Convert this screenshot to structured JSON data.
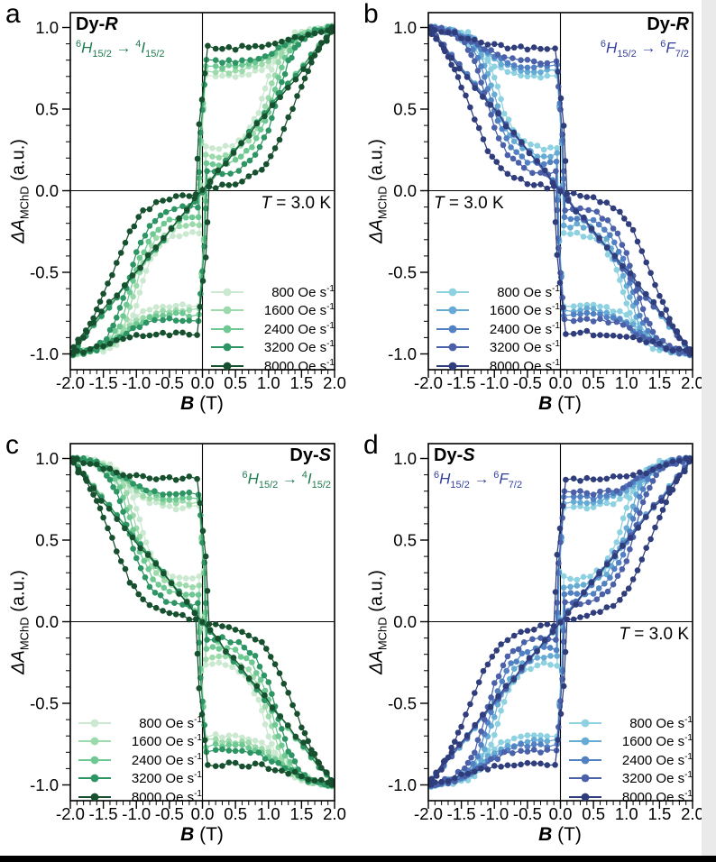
{
  "figure": {
    "temperature_shown": "3.0 K",
    "ylabel": {
      "main": "ΔA",
      "sub": "MChD",
      "rest": " (a.u.)"
    },
    "xlabel": {
      "sym": "B",
      "rest": " (T)"
    }
  },
  "chart_data": {
    "type": "scatter",
    "description": "Field-sweep-rate dependent MChD hysteresis loops, 4 panels (2x2). Descending branch of each loop is the point reflection (-B,-y) of the ascending branch; panels with sign -1 have the whole loop flipped vertically.",
    "xlabel_sym": "B",
    "xlabel_rest": " (T)",
    "ylabel_main": "ΔA",
    "ylabel_sub": "MChD",
    "ylabel_rest": " (a.u.)",
    "xlim": [
      -2,
      2
    ],
    "ylim": [
      -1.1,
      1.1
    ],
    "x_tick_labels": [
      "-2.0",
      "-1.5",
      "-1.0",
      "-0.5",
      "0.0",
      "0.5",
      "1.0",
      "1.5",
      "2.0"
    ],
    "y_tick_labels": [
      "1.0",
      "0.5",
      "0.0",
      "-0.5",
      "-1.0"
    ],
    "minor_tick_step": 0.1,
    "grid": false,
    "rates": [
      "800",
      "1600",
      "2400",
      "3200",
      "8000"
    ],
    "legend_unit": " Oe s",
    "legend_sup": "-1",
    "arrow": " → ",
    "colors": {
      "green": [
        "#cbe8d0",
        "#9cd9ab",
        "#6ec892",
        "#2d9463",
        "#17502e"
      ],
      "blue": [
        "#8ed1e1",
        "#66abd4",
        "#5181c3",
        "#4a60a8",
        "#2f3d7c"
      ],
      "transition_green": "#1e7b4f",
      "transition_blue": "#3340a0"
    },
    "panels": [
      {
        "letter": "a",
        "compound_prefix": "Dy-",
        "compound_suffix": "R",
        "color_family": "green",
        "sign": 1,
        "title_side": "left",
        "transition": {
          "s1": "6",
          "l1": "H",
          "b1": "15/2",
          "s2": "4",
          "l2": "I",
          "b2": "15/2"
        },
        "temp": {
          "sym": "T",
          "rest": " = 3.0 K"
        },
        "temp_side": "right",
        "legend_side": "right"
      },
      {
        "letter": "b",
        "compound_prefix": "Dy-",
        "compound_suffix": "R",
        "color_family": "blue",
        "sign": -1,
        "title_side": "right",
        "transition": {
          "s1": "6",
          "l1": "H",
          "b1": "15/2",
          "s2": "6",
          "l2": "F",
          "b2": "7/2"
        },
        "temp": {
          "sym": "T",
          "rest": " = 3.0 K"
        },
        "temp_side": "left",
        "legend_side": "left"
      },
      {
        "letter": "c",
        "compound_prefix": "Dy-",
        "compound_suffix": "S",
        "color_family": "green",
        "sign": -1,
        "title_side": "right",
        "transition": {
          "s1": "6",
          "l1": "H",
          "b1": "15/2",
          "s2": "4",
          "l2": "I",
          "b2": "15/2"
        },
        "temp": null,
        "temp_side": "right",
        "legend_side": "left"
      },
      {
        "letter": "d",
        "compound_prefix": "Dy-",
        "compound_suffix": "S",
        "color_family": "blue",
        "sign": 1,
        "title_side": "left",
        "transition": {
          "s1": "6",
          "l1": "H",
          "b1": "15/2",
          "s2": "6",
          "l2": "F",
          "b2": "7/2"
        },
        "temp": {
          "sym": "T",
          "rest": " = 3.0 K"
        },
        "temp_side": "right",
        "legend_side": "right"
      }
    ],
    "loops": {
      "800": {
        "asc": [
          [
            -2.0,
            -1.0
          ],
          [
            -1.8,
            -0.99
          ],
          [
            -1.6,
            -0.96
          ],
          [
            -1.4,
            -0.9
          ],
          [
            -1.2,
            -0.83
          ],
          [
            -1.0,
            -0.77
          ],
          [
            -0.8,
            -0.73
          ],
          [
            -0.6,
            -0.71
          ],
          [
            -0.4,
            -0.7
          ],
          [
            -0.2,
            -0.7
          ],
          [
            -0.05,
            -0.7
          ],
          [
            0.02,
            -0.3
          ],
          [
            0.05,
            0.27
          ],
          [
            0.25,
            0.26
          ],
          [
            0.45,
            0.28
          ],
          [
            0.65,
            0.33
          ],
          [
            0.85,
            0.48
          ],
          [
            1.0,
            0.7
          ],
          [
            1.15,
            0.86
          ],
          [
            1.3,
            0.94
          ],
          [
            1.5,
            0.98
          ],
          [
            1.75,
            0.99
          ],
          [
            2.0,
            1.0
          ]
        ]
      },
      "1600": {
        "asc": [
          [
            -2.0,
            -1.0
          ],
          [
            -1.8,
            -0.99
          ],
          [
            -1.6,
            -0.97
          ],
          [
            -1.4,
            -0.92
          ],
          [
            -1.2,
            -0.86
          ],
          [
            -1.0,
            -0.8
          ],
          [
            -0.8,
            -0.76
          ],
          [
            -0.6,
            -0.74
          ],
          [
            -0.4,
            -0.73
          ],
          [
            -0.2,
            -0.73
          ],
          [
            -0.05,
            -0.73
          ],
          [
            0.02,
            -0.3
          ],
          [
            0.05,
            0.22
          ],
          [
            0.25,
            0.21
          ],
          [
            0.45,
            0.23
          ],
          [
            0.7,
            0.3
          ],
          [
            0.9,
            0.44
          ],
          [
            1.05,
            0.65
          ],
          [
            1.2,
            0.84
          ],
          [
            1.35,
            0.93
          ],
          [
            1.55,
            0.97
          ],
          [
            1.8,
            0.99
          ],
          [
            2.0,
            1.0
          ]
        ]
      },
      "2400": {
        "asc": [
          [
            -2.0,
            -1.0
          ],
          [
            -1.8,
            -0.99
          ],
          [
            -1.6,
            -0.97
          ],
          [
            -1.4,
            -0.93
          ],
          [
            -1.2,
            -0.88
          ],
          [
            -1.0,
            -0.82
          ],
          [
            -0.8,
            -0.78
          ],
          [
            -0.6,
            -0.76
          ],
          [
            -0.4,
            -0.76
          ],
          [
            -0.2,
            -0.76
          ],
          [
            -0.05,
            -0.76
          ],
          [
            0.03,
            -0.3
          ],
          [
            0.06,
            0.17
          ],
          [
            0.25,
            0.16
          ],
          [
            0.5,
            0.18
          ],
          [
            0.75,
            0.26
          ],
          [
            0.95,
            0.42
          ],
          [
            1.1,
            0.63
          ],
          [
            1.25,
            0.82
          ],
          [
            1.4,
            0.92
          ],
          [
            1.6,
            0.97
          ],
          [
            1.8,
            0.99
          ],
          [
            2.0,
            1.0
          ]
        ]
      },
      "3200": {
        "asc": [
          [
            -2.0,
            -1.0
          ],
          [
            -1.8,
            -0.99
          ],
          [
            -1.6,
            -0.97
          ],
          [
            -1.45,
            -0.94
          ],
          [
            -1.25,
            -0.9
          ],
          [
            -1.05,
            -0.85
          ],
          [
            -0.85,
            -0.81
          ],
          [
            -0.6,
            -0.79
          ],
          [
            -0.4,
            -0.79
          ],
          [
            -0.2,
            -0.79
          ],
          [
            -0.06,
            -0.79
          ],
          [
            0.03,
            -0.35
          ],
          [
            0.07,
            0.11
          ],
          [
            0.3,
            0.1
          ],
          [
            0.55,
            0.13
          ],
          [
            0.8,
            0.22
          ],
          [
            1.0,
            0.38
          ],
          [
            1.15,
            0.6
          ],
          [
            1.3,
            0.79
          ],
          [
            1.45,
            0.9
          ],
          [
            1.65,
            0.96
          ],
          [
            1.85,
            0.99
          ],
          [
            2.0,
            1.0
          ]
        ]
      },
      "8000": {
        "asc": [
          [
            -2.0,
            -1.0
          ],
          [
            -1.8,
            -0.98
          ],
          [
            -1.6,
            -0.96
          ],
          [
            -1.4,
            -0.93
          ],
          [
            -1.2,
            -0.91
          ],
          [
            -1.0,
            -0.89
          ],
          [
            -0.8,
            -0.88
          ],
          [
            -0.6,
            -0.88
          ],
          [
            -0.4,
            -0.87
          ],
          [
            -0.2,
            -0.88
          ],
          [
            -0.08,
            -0.88
          ],
          [
            0.05,
            -0.4
          ],
          [
            0.1,
            0.02
          ],
          [
            0.3,
            0.03
          ],
          [
            0.5,
            0.05
          ],
          [
            0.7,
            0.08
          ],
          [
            0.9,
            0.13
          ],
          [
            1.1,
            0.25
          ],
          [
            1.3,
            0.44
          ],
          [
            1.5,
            0.64
          ],
          [
            1.65,
            0.78
          ],
          [
            1.8,
            0.9
          ],
          [
            1.95,
            0.97
          ],
          [
            2.0,
            0.98
          ]
        ]
      }
    }
  }
}
